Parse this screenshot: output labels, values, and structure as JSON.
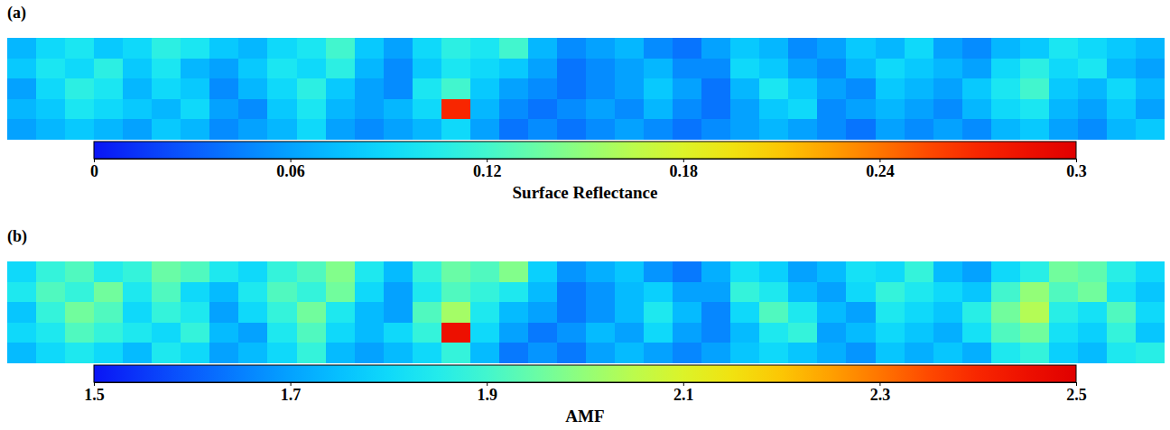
{
  "chart_data": [
    {
      "type": "heatmap",
      "title": "(a)",
      "colorbar_label": "Surface Reflectance",
      "colorbar_range": [
        0,
        0.3
      ],
      "colorbar_ticks": [
        0,
        0.06,
        0.12,
        0.18,
        0.24,
        0.3
      ],
      "tick_labels": false,
      "cells": [
        [
          0.07,
          0.09,
          0.1,
          0.08,
          0.09,
          0.11,
          0.1,
          0.08,
          0.07,
          0.09,
          0.1,
          0.12,
          0.08,
          0.06,
          0.09,
          0.11,
          0.1,
          0.12,
          0.07,
          0.05,
          0.06,
          0.07,
          0.05,
          0.04,
          0.06,
          0.08,
          0.07,
          0.05,
          0.06,
          0.08,
          0.07,
          0.09,
          0.06,
          0.05,
          0.07,
          0.08,
          0.1,
          0.09,
          0.08,
          0.07
        ],
        [
          0.08,
          0.1,
          0.09,
          0.11,
          0.08,
          0.1,
          0.07,
          0.06,
          0.08,
          0.1,
          0.09,
          0.11,
          0.07,
          0.05,
          0.08,
          0.1,
          0.09,
          0.08,
          0.06,
          0.04,
          0.05,
          0.06,
          0.07,
          0.05,
          0.05,
          0.09,
          0.08,
          0.06,
          0.05,
          0.07,
          0.09,
          0.08,
          0.07,
          0.06,
          0.09,
          0.11,
          0.09,
          0.1,
          0.07,
          0.06
        ],
        [
          0.06,
          0.09,
          0.11,
          0.1,
          0.07,
          0.09,
          0.08,
          0.05,
          0.07,
          0.09,
          0.11,
          0.08,
          0.06,
          0.05,
          0.1,
          0.12,
          0.08,
          0.06,
          0.05,
          0.04,
          0.05,
          0.06,
          0.08,
          0.06,
          0.04,
          0.07,
          0.1,
          0.08,
          0.06,
          0.05,
          0.08,
          0.07,
          0.06,
          0.08,
          0.1,
          0.12,
          0.08,
          0.07,
          0.09,
          0.07
        ],
        [
          0.07,
          0.08,
          0.1,
          0.09,
          0.08,
          0.07,
          0.09,
          0.06,
          0.05,
          0.08,
          0.1,
          0.07,
          0.06,
          0.07,
          0.09,
          0.27,
          0.07,
          0.05,
          0.04,
          0.05,
          0.06,
          0.05,
          0.07,
          0.05,
          0.04,
          0.06,
          0.08,
          0.09,
          0.05,
          0.06,
          0.07,
          0.06,
          0.05,
          0.07,
          0.09,
          0.1,
          0.07,
          0.06,
          0.08,
          0.06
        ],
        [
          0.06,
          0.07,
          0.08,
          0.07,
          0.06,
          0.08,
          0.07,
          0.05,
          0.06,
          0.07,
          0.09,
          0.06,
          0.05,
          0.06,
          0.07,
          0.09,
          0.06,
          0.04,
          0.05,
          0.04,
          0.05,
          0.06,
          0.05,
          0.04,
          0.05,
          0.06,
          0.07,
          0.06,
          0.05,
          0.04,
          0.06,
          0.05,
          0.06,
          0.05,
          0.07,
          0.08,
          0.06,
          0.05,
          0.07,
          0.08
        ]
      ]
    },
    {
      "type": "heatmap",
      "title": "(b)",
      "colorbar_label": "AMF",
      "colorbar_range": [
        1.5,
        2.5
      ],
      "colorbar_ticks": [
        1.5,
        1.7,
        1.9,
        2.1,
        2.3,
        2.5
      ],
      "tick_labels": false,
      "cells": [
        [
          1.8,
          1.88,
          1.92,
          1.85,
          1.88,
          1.95,
          1.92,
          1.84,
          1.8,
          1.88,
          1.92,
          1.98,
          1.84,
          1.74,
          1.88,
          1.95,
          1.92,
          1.98,
          1.78,
          1.68,
          1.72,
          1.76,
          1.68,
          1.64,
          1.72,
          1.82,
          1.78,
          1.7,
          1.74,
          1.82,
          1.8,
          1.88,
          1.74,
          1.7,
          1.8,
          1.86,
          1.96,
          1.94,
          1.86,
          1.8
        ],
        [
          1.84,
          1.92,
          1.88,
          1.96,
          1.84,
          1.92,
          1.8,
          1.74,
          1.84,
          1.92,
          1.88,
          1.96,
          1.8,
          1.7,
          1.84,
          1.92,
          1.88,
          1.84,
          1.74,
          1.64,
          1.68,
          1.74,
          1.78,
          1.7,
          1.7,
          1.88,
          1.84,
          1.74,
          1.7,
          1.8,
          1.88,
          1.84,
          1.8,
          1.76,
          1.9,
          2.0,
          1.92,
          1.96,
          1.82,
          1.76
        ],
        [
          1.76,
          1.88,
          1.96,
          1.92,
          1.8,
          1.88,
          1.84,
          1.7,
          1.8,
          1.88,
          1.96,
          1.84,
          1.74,
          1.7,
          1.92,
          2.02,
          1.84,
          1.74,
          1.7,
          1.64,
          1.68,
          1.74,
          1.84,
          1.74,
          1.66,
          1.8,
          1.92,
          1.84,
          1.74,
          1.7,
          1.84,
          1.8,
          1.76,
          1.86,
          1.96,
          2.04,
          1.86,
          1.82,
          1.92,
          1.8
        ],
        [
          1.8,
          1.84,
          1.92,
          1.88,
          1.84,
          1.8,
          1.88,
          1.74,
          1.7,
          1.84,
          1.92,
          1.8,
          1.74,
          1.8,
          1.88,
          2.45,
          1.8,
          1.7,
          1.64,
          1.68,
          1.74,
          1.7,
          1.8,
          1.7,
          1.66,
          1.74,
          1.84,
          1.88,
          1.7,
          1.74,
          1.8,
          1.76,
          1.72,
          1.82,
          1.92,
          1.96,
          1.82,
          1.78,
          1.88,
          1.76
        ],
        [
          1.74,
          1.8,
          1.84,
          1.8,
          1.74,
          1.84,
          1.8,
          1.7,
          1.74,
          1.8,
          1.88,
          1.74,
          1.7,
          1.74,
          1.8,
          1.88,
          1.74,
          1.64,
          1.68,
          1.64,
          1.7,
          1.74,
          1.7,
          1.66,
          1.7,
          1.76,
          1.8,
          1.76,
          1.72,
          1.68,
          1.76,
          1.72,
          1.76,
          1.72,
          1.84,
          1.88,
          1.78,
          1.74,
          1.84,
          1.86
        ]
      ]
    }
  ]
}
